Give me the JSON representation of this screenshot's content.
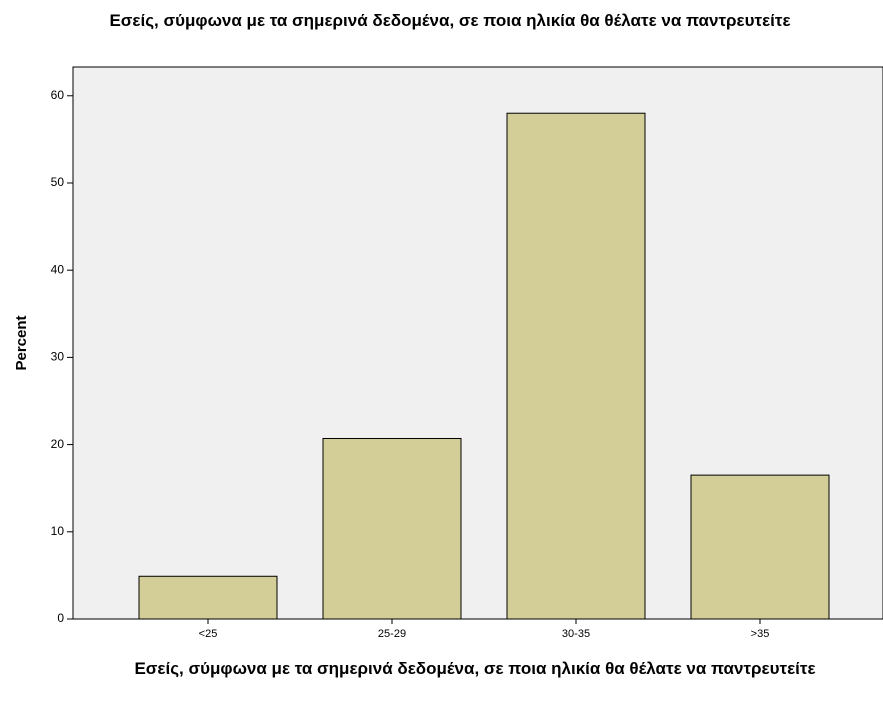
{
  "chart_data": {
    "type": "bar",
    "title": "Εσείς, σύμφωνα με τα σημερινά δεδομένα, σε ποια ηλικία θα θέλατε να παντρευτείτε",
    "x_label": "Εσείς, σύμφωνα με τα σημερινά δεδομένα, σε ποια ηλικία θα θέλατε να παντρευτείτε",
    "y_label": "Percent",
    "categories": [
      "<25",
      "25-29",
      "30-35",
      ">35"
    ],
    "values": [
      4.9,
      20.7,
      58.0,
      16.5
    ],
    "color": "#d3ce97",
    "ylim": [
      0,
      63.3
    ],
    "yticks": [
      0,
      10,
      20,
      30,
      40,
      50,
      60
    ]
  }
}
